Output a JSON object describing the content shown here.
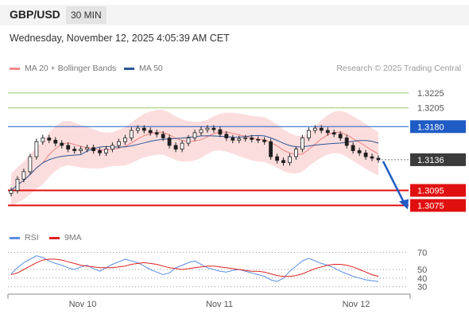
{
  "header": {
    "symbol": "GBP/USD",
    "timeframe": "30 MIN",
    "datetime": "Wednesday, November 12, 2025 4:05:39 AM CET"
  },
  "legend": {
    "items": [
      {
        "label": "MA 20 + Bollinger Bands",
        "color": "#f28a8a"
      },
      {
        "label": "MA 50",
        "color": "#2b5597"
      }
    ],
    "credit": "Research © 2025 Trading Central"
  },
  "rsi_legend": {
    "items": [
      {
        "label": "RSI",
        "color": "#5b8ee6"
      },
      {
        "label": "9MA",
        "color": "#e02020"
      }
    ]
  },
  "colors": {
    "candle": "#1f1f1f",
    "bollinger_fill": "#fbd5d5",
    "ma20": "#f08080",
    "ma50": "#2b5597",
    "resistance": "#9ccc65",
    "pivot": "#1f5bc4",
    "support": "#e01010",
    "current": "#3b3b3b",
    "rsi": "#5b8ee6",
    "rsi_ma": "#e02020",
    "arrow": "#1f5bc4"
  },
  "chart_data": [
    {
      "type": "candlestick",
      "title": "GBP/USD 30 MIN",
      "x_ticks": [
        "Nov 10",
        "Nov 11",
        "Nov 12"
      ],
      "ylim": [
        1.305,
        1.3245
      ],
      "levels": [
        {
          "value": 1.3225,
          "label": "1.3225",
          "kind": "resistance"
        },
        {
          "value": 1.3205,
          "label": "1.3205",
          "kind": "resistance"
        },
        {
          "value": 1.318,
          "label": "1.3180",
          "kind": "pivot"
        },
        {
          "value": 1.3136,
          "label": "1.3136",
          "kind": "current"
        },
        {
          "value": 1.3095,
          "label": "1.3095",
          "kind": "support"
        },
        {
          "value": 1.3075,
          "label": "1.3075",
          "kind": "support"
        }
      ],
      "close_path": [
        1.3095,
        1.311,
        1.312,
        1.314,
        1.316,
        1.3165,
        1.3162,
        1.3158,
        1.3155,
        1.315,
        1.3148,
        1.315,
        1.3152,
        1.3148,
        1.3145,
        1.315,
        1.3155,
        1.316,
        1.3165,
        1.3175,
        1.3178,
        1.3175,
        1.3172,
        1.317,
        1.3165,
        1.3155,
        1.315,
        1.3158,
        1.3165,
        1.3172,
        1.3176,
        1.3178,
        1.3176,
        1.317,
        1.3165,
        1.3162,
        1.3164,
        1.3165,
        1.3163,
        1.3162,
        1.316,
        1.314,
        1.3135,
        1.3132,
        1.314,
        1.315,
        1.3165,
        1.3175,
        1.3178,
        1.3175,
        1.3172,
        1.317,
        1.3165,
        1.3155,
        1.3148,
        1.3145,
        1.314,
        1.3138,
        1.3136
      ]
    },
    {
      "type": "line",
      "title": "RSI",
      "ylim": [
        25,
        75
      ],
      "y_ticks": [
        70,
        50,
        40,
        30
      ],
      "series": [
        {
          "name": "RSI",
          "values": [
            45,
            52,
            58,
            62,
            66,
            64,
            60,
            57,
            55,
            52,
            50,
            53,
            55,
            51,
            48,
            52,
            56,
            59,
            62,
            60,
            58,
            54,
            50,
            47,
            44,
            46,
            52,
            55,
            58,
            60,
            56,
            52,
            50,
            48,
            47,
            49,
            50,
            48,
            46,
            44,
            42,
            38,
            36,
            40,
            48,
            54,
            60,
            63,
            60,
            57,
            55,
            52,
            48,
            45,
            42,
            40,
            38,
            37,
            36
          ]
        },
        {
          "name": "9MA",
          "values": [
            44,
            46,
            50,
            54,
            58,
            61,
            62,
            62,
            61,
            59,
            57,
            55,
            54,
            53,
            52,
            52,
            52,
            53,
            54,
            56,
            57,
            58,
            57,
            56,
            54,
            52,
            51,
            50,
            51,
            52,
            53,
            54,
            54,
            53,
            52,
            51,
            50,
            49,
            48,
            48,
            47,
            45,
            43,
            42,
            42,
            43,
            45,
            48,
            51,
            53,
            55,
            56,
            56,
            55,
            53,
            50,
            47,
            44,
            42
          ]
        }
      ]
    }
  ]
}
